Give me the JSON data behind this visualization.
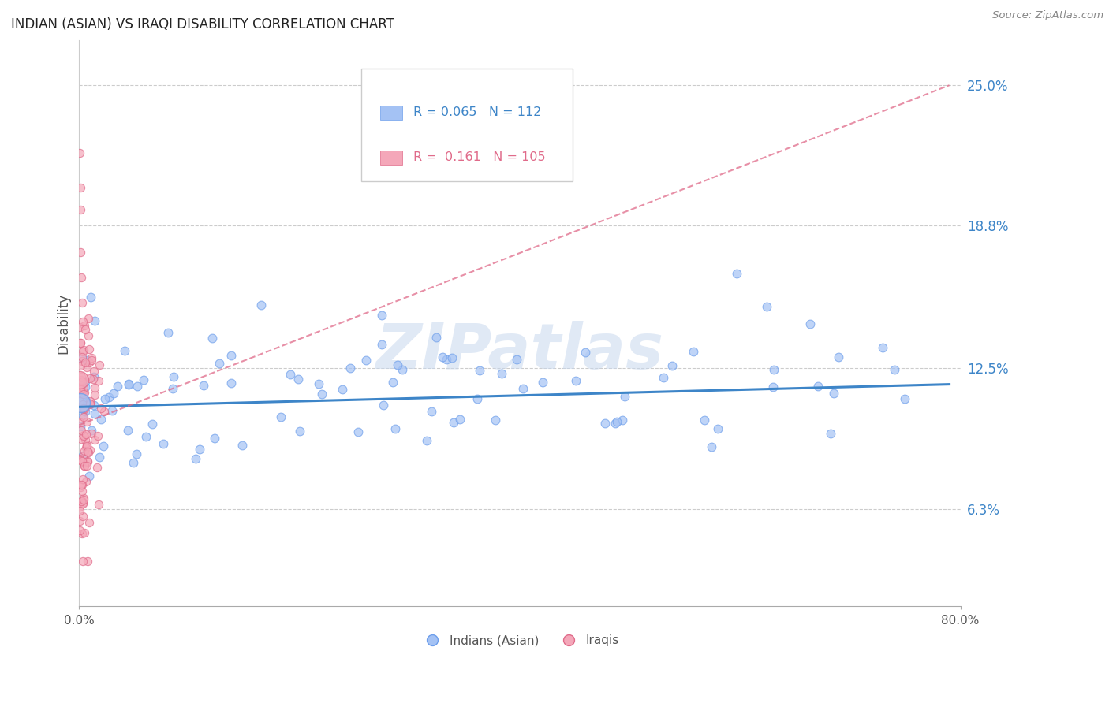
{
  "title": "INDIAN (ASIAN) VS IRAQI DISABILITY CORRELATION CHART",
  "source": "Source: ZipAtlas.com",
  "ylabel": "Disability",
  "xlim": [
    0.0,
    80.0
  ],
  "ylim": [
    2.0,
    27.0
  ],
  "yticks": [
    6.3,
    12.5,
    18.8,
    25.0
  ],
  "ytick_labels": [
    "6.3%",
    "12.5%",
    "18.8%",
    "25.0%"
  ],
  "blue_color": "#a4c2f4",
  "pink_color": "#f4a7b9",
  "blue_edge_color": "#6d9eeb",
  "pink_edge_color": "#e06b8a",
  "blue_line_color": "#3d85c8",
  "pink_line_color": "#e06b8a",
  "legend_blue_label": "Indians (Asian)",
  "legend_pink_label": "Iraqis",
  "R_blue": 0.065,
  "N_blue": 112,
  "R_pink": 0.161,
  "N_pink": 105,
  "watermark": "ZIPatlas",
  "blue_seed": 42,
  "pink_seed": 7,
  "pink_line_start_y": 10.0,
  "pink_line_end_y": 25.0,
  "blue_line_start_y": 10.8,
  "blue_line_end_y": 11.8
}
